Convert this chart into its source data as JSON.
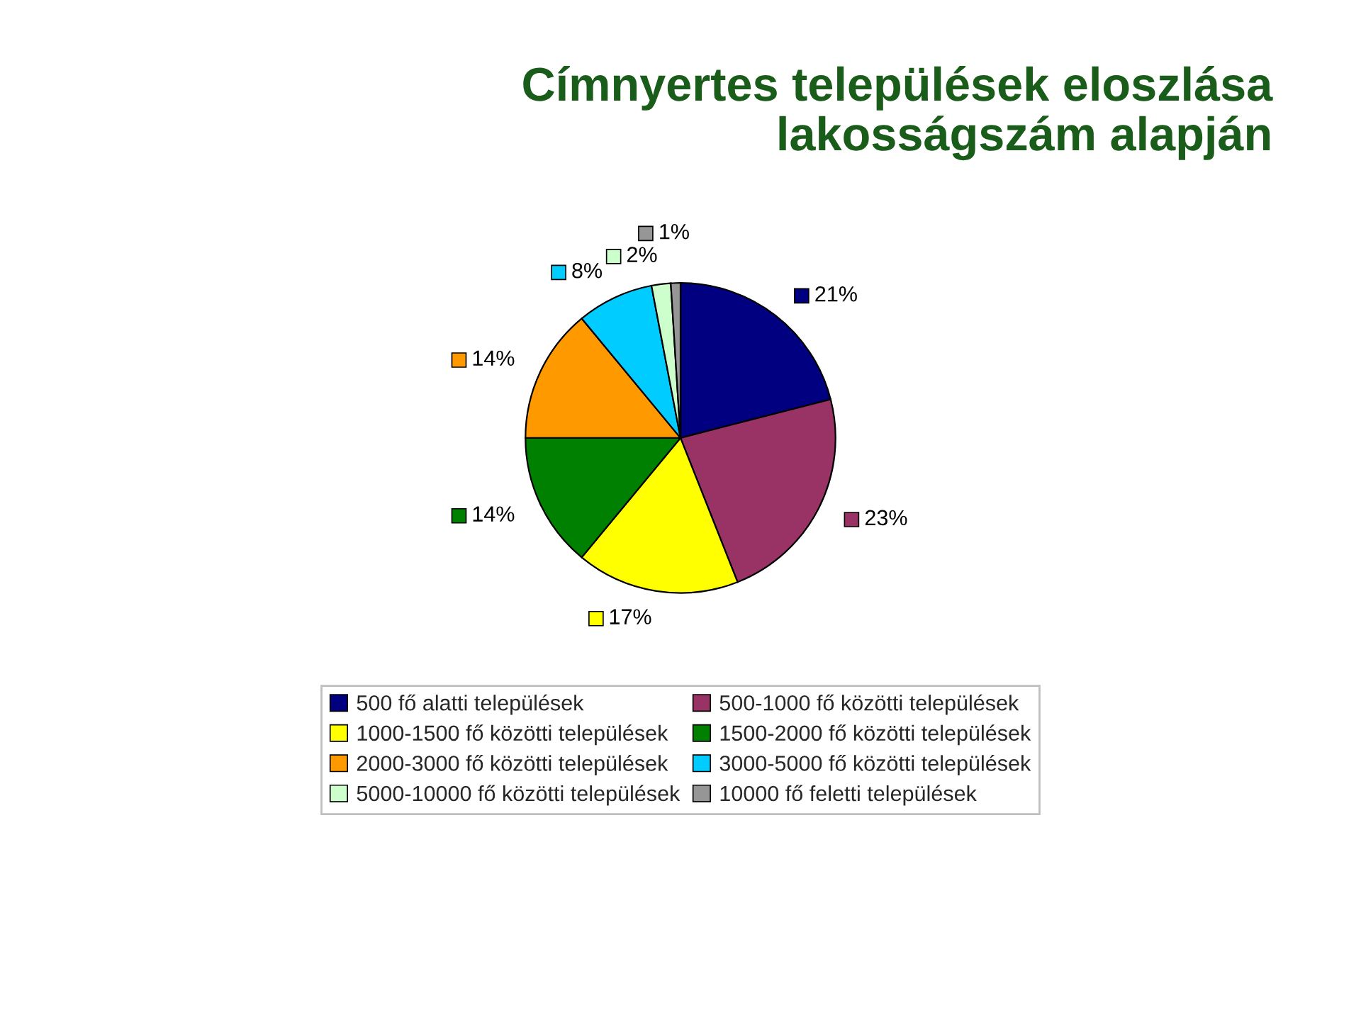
{
  "chart_data": {
    "type": "pie",
    "title": "Címnyertes települések eloszlása\nlakosságszám alapján",
    "categories": [
      "500 fő alatti települések",
      "500-1000 fő közötti települések",
      "1000-1500 fő közötti települések",
      "1500-2000 fő közötti települések",
      "2000-3000 fő közötti települések",
      "3000-5000 fő közötti települések",
      "5000-10000 fő közötti települések",
      "10000 fő feletti települések"
    ],
    "values": [
      21,
      23,
      17,
      14,
      14,
      8,
      2,
      1
    ],
    "colors": [
      "#000080",
      "#993366",
      "#ffff00",
      "#008000",
      "#ff9900",
      "#00ccff",
      "#ccffcc",
      "#969696"
    ],
    "value_labels": [
      "21%",
      "23%",
      "17%",
      "14%",
      "14%",
      "8%",
      "2%",
      "1%"
    ],
    "legend": "bottom"
  }
}
